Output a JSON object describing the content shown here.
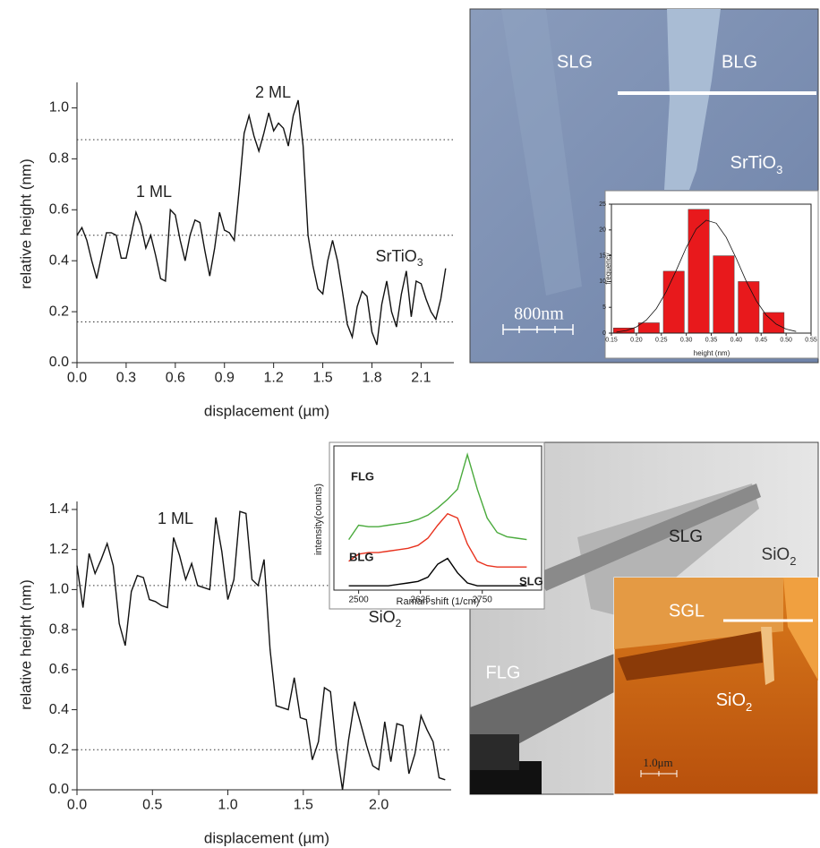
{
  "chart_data": [
    {
      "type": "line",
      "x_label": "displacement (µm)",
      "y_label": "relative height (nm)",
      "xlim": [
        0,
        2.3
      ],
      "ylim": [
        0,
        1.1
      ],
      "xticks": [
        {
          "value": 0,
          "label": "0.0"
        },
        0.3,
        0.6,
        0.9,
        1.2,
        1.5,
        1.8,
        2.1
      ],
      "yticks": [
        {
          "value": 0,
          "label": "0.0"
        },
        0.2,
        0.4,
        0.6,
        0.8,
        {
          "value": 1,
          "label": "1.0"
        }
      ],
      "reference_lines": [
        0.875,
        0.5,
        0.16
      ],
      "annotations": [
        {
          "text": "2 ML"
        },
        {
          "text": "1 ML"
        },
        {
          "text": "SrTiO",
          "sub": "3"
        }
      ],
      "color": "#111",
      "x": [
        0,
        0.03,
        0.06,
        0.09,
        0.12,
        0.15,
        0.18,
        0.21,
        0.24,
        0.27,
        0.3,
        0.33,
        0.36,
        0.39,
        0.42,
        0.45,
        0.48,
        0.51,
        0.54,
        0.57,
        0.6,
        0.63,
        0.66,
        0.69,
        0.72,
        0.75,
        0.78,
        0.81,
        0.84,
        0.87,
        0.9,
        0.93,
        0.96,
        0.99,
        1.02,
        1.05,
        1.08,
        1.11,
        1.14,
        1.17,
        1.2,
        1.23,
        1.26,
        1.29,
        1.32,
        1.35,
        1.38,
        1.41,
        1.44,
        1.47,
        1.5,
        1.53,
        1.56,
        1.59,
        1.62,
        1.65,
        1.68,
        1.71,
        1.74,
        1.77,
        1.8,
        1.83,
        1.86,
        1.89,
        1.92,
        1.95,
        1.98,
        2.01,
        2.04,
        2.07,
        2.1,
        2.13,
        2.16,
        2.19,
        2.22,
        2.25
      ],
      "values": [
        0.5,
        0.53,
        0.48,
        0.4,
        0.33,
        0.42,
        0.51,
        0.51,
        0.5,
        0.41,
        0.41,
        0.5,
        0.59,
        0.54,
        0.45,
        0.5,
        0.42,
        0.33,
        0.32,
        0.6,
        0.58,
        0.48,
        0.4,
        0.5,
        0.56,
        0.55,
        0.44,
        0.34,
        0.45,
        0.59,
        0.52,
        0.51,
        0.48,
        0.68,
        0.9,
        0.97,
        0.89,
        0.83,
        0.9,
        0.98,
        0.91,
        0.94,
        0.92,
        0.85,
        0.97,
        1.03,
        0.85,
        0.5,
        0.38,
        0.29,
        0.27,
        0.4,
        0.48,
        0.4,
        0.28,
        0.15,
        0.1,
        0.22,
        0.28,
        0.26,
        0.12,
        0.07,
        0.23,
        0.32,
        0.2,
        0.14,
        0.27,
        0.36,
        0.18,
        0.32,
        0.31,
        0.25,
        0.2,
        0.17,
        0.25,
        0.37
      ]
    },
    {
      "type": "image",
      "labels": [
        "SLG",
        "BLG",
        {
          "text": "SrTiO",
          "sub": "3"
        }
      ],
      "scale_bar": "800nm"
    },
    {
      "type": "histogram",
      "x_label": "height (nm)",
      "y_label": "frequency",
      "color": "#e8191c",
      "xlim": [
        0.15,
        0.55
      ],
      "ylim": [
        0,
        25
      ],
      "xticks": [
        0.15,
        {
          "value": 0.2,
          "label": "0.20"
        },
        0.25,
        {
          "value": 0.3,
          "label": "0.30"
        },
        0.35,
        {
          "value": 0.4,
          "label": "0.40"
        },
        0.45,
        {
          "value": 0.5,
          "label": "0.50"
        },
        0.55
      ],
      "yticks": [
        0,
        5,
        10,
        15,
        20,
        25
      ],
      "bins": [
        0.15,
        0.2,
        0.25,
        0.3,
        0.35,
        0.4,
        0.45,
        0.5
      ],
      "values": [
        1,
        2,
        12,
        24,
        15,
        10,
        4
      ],
      "fit": {
        "x": [
          0.16,
          0.18,
          0.2,
          0.22,
          0.24,
          0.26,
          0.28,
          0.3,
          0.32,
          0.34,
          0.36,
          0.38,
          0.4,
          0.42,
          0.44,
          0.46,
          0.48,
          0.5,
          0.52
        ],
        "y": [
          0.19,
          0.5,
          1.19,
          2.51,
          4.76,
          8.06,
          12.2,
          16.6,
          20.2,
          21.9,
          21.3,
          18.6,
          14.5,
          10.1,
          6.3,
          3.5,
          1.75,
          0.78,
          0.31
        ]
      }
    },
    {
      "type": "line",
      "x_label": "displacement (µm)",
      "y_label": "relative height (nm)",
      "xlim": [
        0,
        2.48
      ],
      "ylim": [
        0,
        1.44
      ],
      "xticks": [
        {
          "value": 0,
          "label": "0.0"
        },
        0.5,
        {
          "value": 1,
          "label": "1.0"
        },
        1.5,
        {
          "value": 2,
          "label": "2.0"
        }
      ],
      "yticks": [
        {
          "value": 0,
          "label": "0.0"
        },
        0.2,
        0.4,
        0.6,
        0.8,
        {
          "value": 1,
          "label": "1.0"
        },
        1.2,
        1.4
      ],
      "reference_lines": [
        1.02,
        0.2
      ],
      "annotations": [
        {
          "text": "1 ML"
        },
        {
          "text": "SiO",
          "sub": "2"
        }
      ],
      "color": "#111",
      "x": [
        0,
        0.04,
        0.08,
        0.12,
        0.16,
        0.2,
        0.24,
        0.28,
        0.32,
        0.36,
        0.4,
        0.44,
        0.48,
        0.52,
        0.56,
        0.6,
        0.64,
        0.68,
        0.72,
        0.76,
        0.8,
        0.84,
        0.88,
        0.92,
        0.96,
        1,
        1.04,
        1.08,
        1.12,
        1.16,
        1.2,
        1.24,
        1.28,
        1.32,
        1.36,
        1.4,
        1.44,
        1.48,
        1.52,
        1.56,
        1.6,
        1.64,
        1.68,
        1.72,
        1.76,
        1.8,
        1.84,
        1.88,
        1.92,
        1.96,
        2,
        2.04,
        2.08,
        2.12,
        2.16,
        2.2,
        2.24,
        2.28,
        2.32,
        2.36,
        2.4,
        2.44
      ],
      "values": [
        1.12,
        0.91,
        1.18,
        1.08,
        1.15,
        1.23,
        1.12,
        0.83,
        0.72,
        0.99,
        1.07,
        1.06,
        0.95,
        0.94,
        0.92,
        0.91,
        1.26,
        1.17,
        1.05,
        1.13,
        1.02,
        1.01,
        1,
        1.36,
        1.19,
        0.95,
        1.05,
        1.39,
        1.38,
        1.05,
        1.02,
        1.15,
        0.7,
        0.42,
        0.41,
        0.4,
        0.56,
        0.36,
        0.35,
        0.15,
        0.24,
        0.51,
        0.49,
        0.2,
        0,
        0.25,
        0.44,
        0.33,
        0.22,
        0.12,
        0.1,
        0.34,
        0.14,
        0.33,
        0.32,
        0.08,
        0.18,
        0.37,
        0.3,
        0.24,
        0.06,
        0.05
      ]
    },
    {
      "type": "line",
      "x_label": "Raman shift (1/cm)",
      "y_label": "intensity(counts)",
      "frame": true,
      "xlim": [
        2450,
        2870
      ],
      "ylim": [
        0,
        1
      ],
      "xticks": [
        2500,
        2625,
        2750
      ],
      "x": [
        2480,
        2500,
        2520,
        2540,
        2560,
        2580,
        2600,
        2620,
        2640,
        2660,
        2680,
        2700,
        2720,
        2740,
        2760,
        2780,
        2800,
        2820,
        2840
      ],
      "series": [
        {
          "name": "FLG",
          "color": "#4aaa3c",
          "values": [
            0.35,
            0.45,
            0.44,
            0.44,
            0.45,
            0.46,
            0.47,
            0.49,
            0.52,
            0.57,
            0.63,
            0.7,
            0.94,
            0.7,
            0.5,
            0.4,
            0.37,
            0.36,
            0.35
          ]
        },
        {
          "name": "BLG",
          "color": "#e8321e",
          "values": [
            0.2,
            0.25,
            0.26,
            0.26,
            0.27,
            0.28,
            0.29,
            0.31,
            0.36,
            0.45,
            0.53,
            0.5,
            0.32,
            0.2,
            0.17,
            0.16,
            0.16,
            0.16,
            0.16
          ]
        },
        {
          "name": "SLG",
          "color": "#000000",
          "values": [
            0.03,
            0.03,
            0.03,
            0.03,
            0.03,
            0.04,
            0.05,
            0.06,
            0.09,
            0.18,
            0.22,
            0.12,
            0.05,
            0.03,
            0.03,
            0.03,
            0.03,
            0.03,
            0.03
          ]
        }
      ]
    },
    {
      "type": "image",
      "labels": [
        "SLG",
        {
          "text": "SiO",
          "sub": "2"
        },
        "FLG"
      ]
    },
    {
      "type": "image",
      "labels": [
        "SGL",
        {
          "text": "SiO",
          "sub": "2"
        }
      ],
      "scale_bar": "1.0μm"
    }
  ]
}
